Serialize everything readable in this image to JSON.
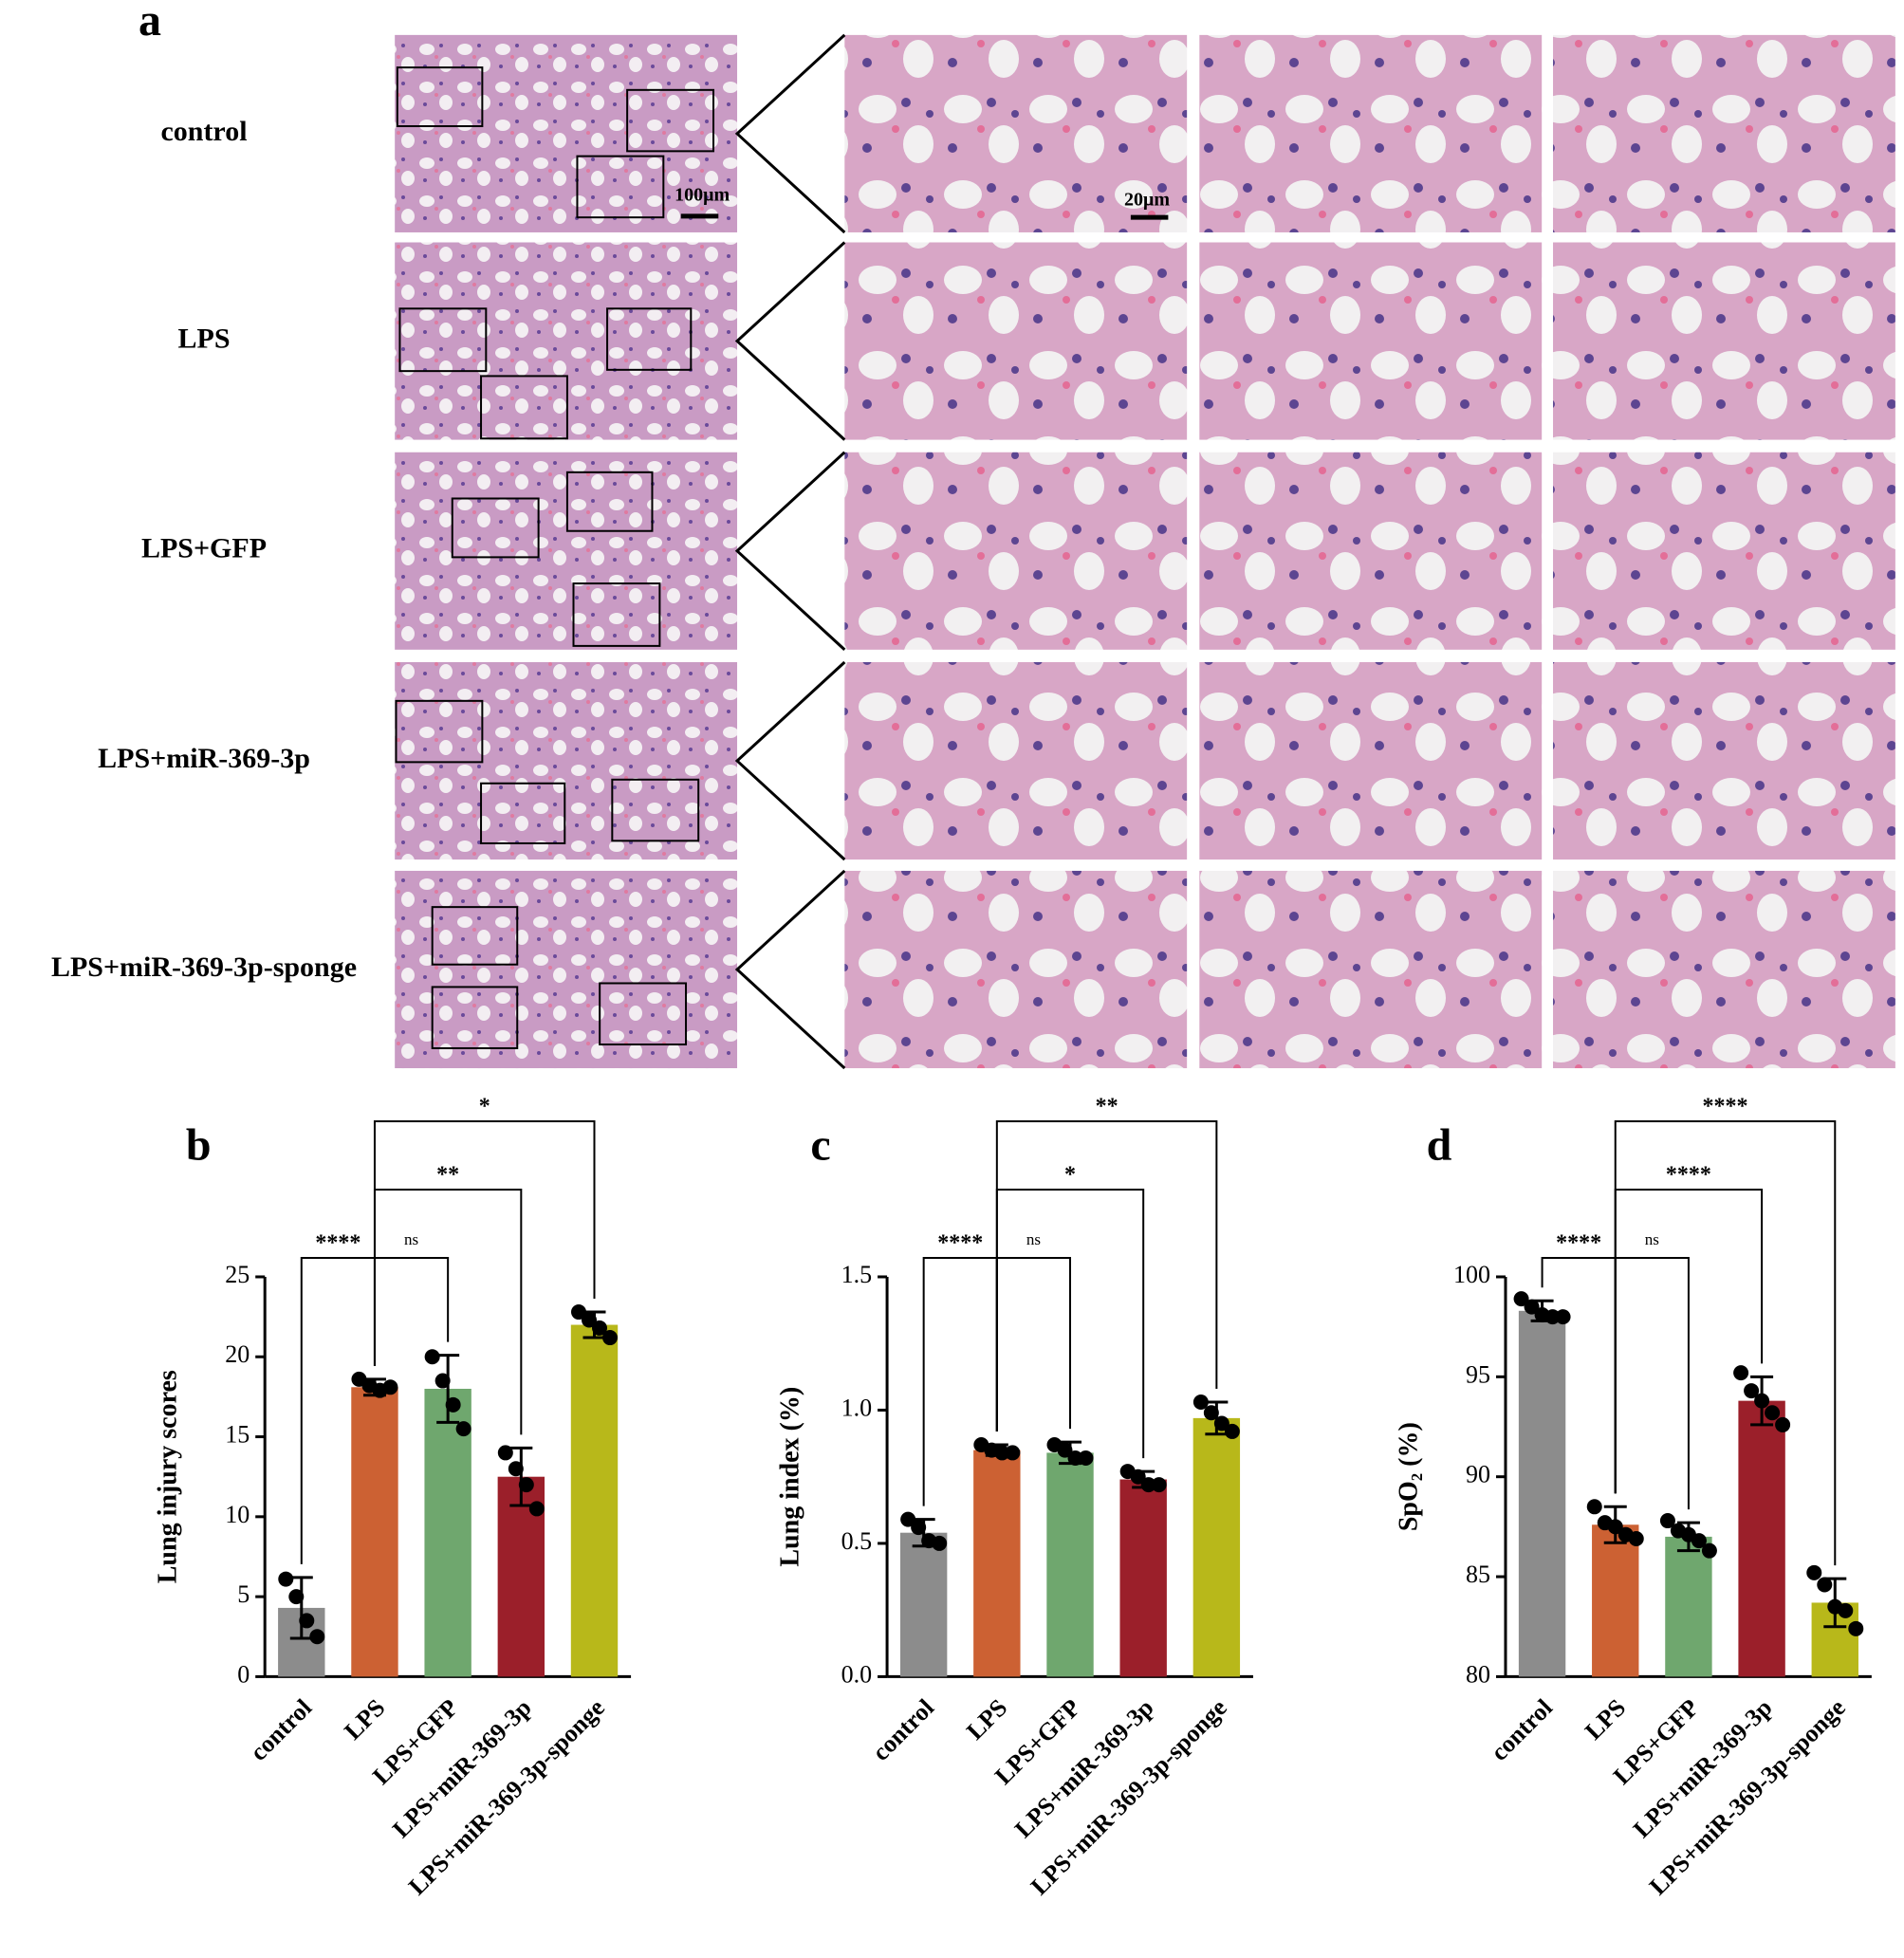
{
  "panel_a": {
    "label": "a",
    "rows": [
      "control",
      "LPS",
      "LPS+GFP",
      "LPS+miR-369-3p",
      "LPS+miR-369-3p-sponge"
    ],
    "overview_scale": "100μm",
    "zoom_scale": "20μm"
  },
  "chart_data": [
    {
      "type": "bar",
      "panel": "b",
      "y_label": "Lung injury scores",
      "categories": [
        "control",
        "LPS",
        "LPS+GFP",
        "LPS+miR-369-3p",
        "LPS+miR-369-3p-sponge"
      ],
      "colors": [
        "#8c8c8c",
        "#cc6133",
        "#6fa76e",
        "#9b1f2a",
        "#b8b81a"
      ],
      "values": [
        4.3,
        18.1,
        18.0,
        12.5,
        22.0
      ],
      "errors": [
        1.9,
        0.5,
        2.1,
        1.8,
        0.8
      ],
      "points": [
        [
          6.1,
          5.0,
          3.5,
          2.5
        ],
        [
          18.6,
          18.2,
          17.9,
          18.1
        ],
        [
          20.0,
          18.5,
          17.0,
          15.5
        ],
        [
          14.0,
          13.0,
          12.0,
          10.5
        ],
        [
          22.8,
          22.3,
          21.8,
          21.2
        ]
      ],
      "ylim": [
        0,
        25
      ],
      "yticks": [
        0,
        5,
        10,
        15,
        20,
        25
      ],
      "significance": [
        {
          "from": 0,
          "to": 1,
          "label": "****"
        },
        {
          "from": 1,
          "to": 2,
          "label": "ns"
        },
        {
          "from": 1,
          "to": 3,
          "label": "**"
        },
        {
          "from": 1,
          "to": 4,
          "label": "*"
        }
      ]
    },
    {
      "type": "bar",
      "panel": "c",
      "y_label": "Lung index (%)",
      "categories": [
        "control",
        "LPS",
        "LPS+GFP",
        "LPS+miR-369-3p",
        "LPS+miR-369-3p-sponge"
      ],
      "colors": [
        "#8c8c8c",
        "#cc6133",
        "#6fa76e",
        "#9b1f2a",
        "#b8b81a"
      ],
      "values": [
        0.54,
        0.85,
        0.84,
        0.74,
        0.97
      ],
      "errors": [
        0.05,
        0.02,
        0.04,
        0.03,
        0.06
      ],
      "points": [
        [
          0.59,
          0.56,
          0.51,
          0.5
        ],
        [
          0.87,
          0.85,
          0.84,
          0.84
        ],
        [
          0.87,
          0.85,
          0.82,
          0.82
        ],
        [
          0.77,
          0.75,
          0.72,
          0.72
        ],
        [
          1.03,
          0.99,
          0.95,
          0.92
        ]
      ],
      "ylim": [
        0,
        1.5
      ],
      "yticks": [
        {
          "value": 0,
          "label": "0.0"
        },
        0.5,
        {
          "value": 1,
          "label": "1.0"
        },
        1.5
      ],
      "significance": [
        {
          "from": 0,
          "to": 1,
          "label": "****"
        },
        {
          "from": 1,
          "to": 2,
          "label": "ns"
        },
        {
          "from": 1,
          "to": 3,
          "label": "*"
        },
        {
          "from": 1,
          "to": 4,
          "label": "**"
        }
      ]
    },
    {
      "type": "bar",
      "panel": "d",
      "y_label": "SpO₂ (%)",
      "categories": [
        "control",
        "LPS",
        "LPS+GFP",
        "LPS+miR-369-3p",
        "LPS+miR-369-3p-sponge"
      ],
      "colors": [
        "#8c8c8c",
        "#cc6133",
        "#6fa76e",
        "#9b1f2a",
        "#b8b81a"
      ],
      "values": [
        98.3,
        87.6,
        87.0,
        93.8,
        83.7
      ],
      "errors": [
        0.5,
        0.9,
        0.7,
        1.2,
        1.2
      ],
      "points": [
        [
          98.9,
          98.5,
          98.1,
          98.0,
          98.0
        ],
        [
          88.5,
          87.7,
          87.5,
          87.1,
          86.9
        ],
        [
          87.8,
          87.3,
          87.1,
          86.8,
          86.3
        ],
        [
          95.2,
          94.3,
          93.8,
          93.2,
          92.6
        ],
        [
          85.2,
          84.6,
          83.5,
          83.3,
          82.4
        ]
      ],
      "ylim": [
        80,
        100
      ],
      "yticks": [
        80,
        85,
        90,
        95,
        100
      ],
      "significance": [
        {
          "from": 0,
          "to": 1,
          "label": "****"
        },
        {
          "from": 1,
          "to": 2,
          "label": "ns"
        },
        {
          "from": 1,
          "to": 3,
          "label": "****"
        },
        {
          "from": 1,
          "to": 4,
          "label": "****"
        }
      ]
    }
  ]
}
